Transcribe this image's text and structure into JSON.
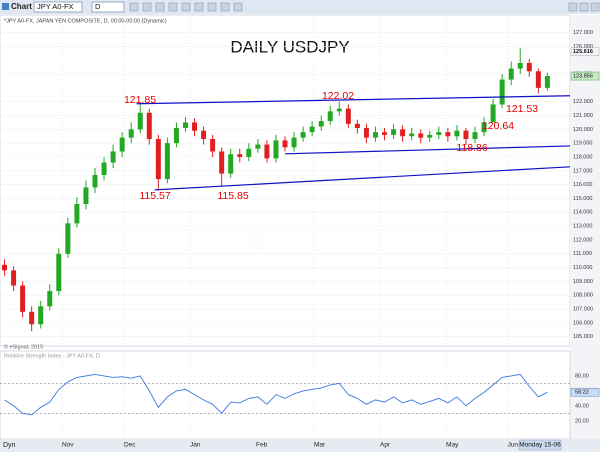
{
  "toolbar": {
    "title": "Chart",
    "symbol": "JPY A0-FX",
    "interval": "D"
  },
  "footer": {
    "mode": "Dyn",
    "cursor_date": "Monday 15-06"
  },
  "chart_data": [
    {
      "type": "candlestick",
      "title": "DAILY USDJPY",
      "subtitle": "*JPY A0-FX, JAPAN YEN COMPOSITE, D, 00:00-00:00 (Dynamic)",
      "copyright": "© eSignal, 2015",
      "up_color": "#22a822",
      "down_color": "#e02020",
      "x": [
        0,
        1,
        2,
        3,
        4,
        5,
        6,
        7,
        8,
        9,
        10,
        11,
        12,
        13,
        14,
        15,
        16,
        17,
        18,
        19,
        20,
        21,
        22,
        23,
        24,
        25,
        26,
        27,
        28,
        29,
        30,
        31,
        32,
        33,
        34,
        35,
        36,
        37,
        38,
        39,
        40,
        41,
        42,
        43,
        44,
        45,
        46,
        47,
        48,
        49,
        50,
        51,
        52,
        53,
        54,
        55,
        56,
        57,
        58,
        59,
        60
      ],
      "open": [
        110.2,
        109.8,
        108.7,
        106.8,
        105.9,
        107.2,
        108.3,
        111.0,
        113.2,
        114.6,
        115.8,
        116.7,
        117.6,
        118.4,
        119.4,
        120.0,
        121.2,
        119.3,
        116.4,
        119.0,
        120.1,
        120.5,
        119.9,
        119.3,
        118.4,
        116.8,
        118.2,
        118.0,
        118.6,
        118.9,
        117.9,
        119.2,
        118.7,
        119.4,
        119.8,
        120.2,
        120.6,
        121.3,
        121.5,
        120.4,
        120.1,
        119.4,
        119.8,
        119.6,
        120.0,
        119.5,
        119.7,
        119.4,
        119.6,
        119.8,
        119.5,
        119.9,
        119.3,
        119.8,
        120.5,
        121.8,
        123.6,
        124.4,
        124.8,
        124.2,
        123.0
      ],
      "high": [
        110.6,
        110.1,
        109.0,
        107.2,
        107.6,
        108.8,
        111.4,
        113.6,
        115.1,
        116.3,
        117.2,
        118.0,
        118.9,
        119.8,
        120.5,
        121.85,
        121.5,
        119.6,
        119.4,
        120.5,
        120.9,
        120.8,
        120.2,
        119.6,
        118.7,
        118.6,
        118.6,
        119.0,
        119.3,
        119.2,
        119.6,
        119.5,
        119.8,
        120.2,
        120.6,
        121.0,
        121.7,
        122.02,
        121.8,
        120.7,
        120.4,
        120.2,
        120.1,
        120.4,
        120.3,
        120.1,
        120.0,
        119.9,
        120.2,
        120.1,
        120.3,
        120.1,
        120.2,
        120.9,
        122.2,
        124.0,
        124.9,
        125.86,
        125.1,
        124.4,
        124.1
      ],
      "low": [
        109.4,
        108.3,
        106.4,
        105.4,
        105.6,
        106.9,
        108.0,
        110.7,
        112.9,
        114.2,
        115.4,
        116.3,
        117.2,
        118.0,
        119.0,
        119.7,
        118.9,
        115.57,
        116.1,
        118.7,
        119.8,
        119.5,
        118.9,
        118.0,
        115.85,
        116.5,
        117.6,
        117.7,
        118.3,
        117.6,
        117.6,
        118.4,
        118.4,
        119.1,
        119.5,
        119.9,
        120.3,
        121.0,
        120.1,
        119.7,
        119.0,
        119.1,
        119.2,
        119.3,
        119.1,
        119.2,
        119.0,
        119.1,
        119.3,
        119.1,
        119.2,
        118.86,
        119.0,
        119.5,
        120.64,
        121.53,
        123.2,
        124.0,
        123.8,
        122.6,
        122.8
      ],
      "close": [
        109.8,
        108.7,
        106.8,
        105.9,
        107.2,
        108.3,
        111.0,
        113.2,
        114.6,
        115.8,
        116.7,
        117.6,
        118.4,
        119.4,
        120.0,
        121.2,
        119.3,
        116.4,
        119.0,
        120.1,
        120.5,
        119.9,
        119.3,
        118.4,
        116.8,
        118.2,
        118.0,
        118.6,
        118.9,
        117.9,
        119.2,
        118.7,
        119.4,
        119.8,
        120.2,
        120.6,
        121.3,
        121.5,
        120.4,
        120.1,
        119.4,
        119.8,
        119.6,
        120.0,
        119.5,
        119.7,
        119.4,
        119.6,
        119.8,
        119.5,
        119.9,
        119.3,
        119.8,
        120.5,
        121.8,
        123.6,
        124.4,
        124.8,
        124.2,
        123.0,
        123.856
      ],
      "price_marker": 125.616,
      "annotations": [
        "121.85",
        "115.57",
        "115.85",
        "122.02",
        "121.53",
        "120.64",
        "118.86"
      ],
      "annotation_color": "#e00000",
      "trendlines": [
        {
          "x": [
            14.6,
            62.5
          ],
          "y": [
            121.85,
            122.43
          ]
        },
        {
          "x": [
            31,
            62.5
          ],
          "y": [
            118.23,
            118.8
          ]
        },
        {
          "x": [
            16.6,
            62.5
          ],
          "y": [
            115.62,
            117.29
          ]
        }
      ],
      "trendline_color": "#1010c8",
      "xlim": [
        -0.5,
        62.5
      ],
      "ylim": [
        104.4,
        128.2
      ],
      "yticks": [
        {
          "value": 105,
          "label": "105.000"
        },
        {
          "value": 106,
          "label": "106.000"
        },
        {
          "value": 107,
          "label": "107.000"
        },
        {
          "value": 108,
          "label": "108.000"
        },
        {
          "value": 109,
          "label": "109.000"
        },
        {
          "value": 110,
          "label": "110.000"
        },
        {
          "value": 111,
          "label": "111.000"
        },
        {
          "value": 112,
          "label": "112.000"
        },
        {
          "value": 113,
          "label": "113.000"
        },
        {
          "value": 114,
          "label": "114.000"
        },
        {
          "value": 115,
          "label": "115.000"
        },
        {
          "value": 116,
          "label": "116.000"
        },
        {
          "value": 117,
          "label": "117.000"
        },
        {
          "value": 118,
          "label": "118.000"
        },
        {
          "value": 119,
          "label": "119.000"
        },
        {
          "value": 120,
          "label": "120.000"
        },
        {
          "value": 121,
          "label": "121.000"
        },
        {
          "value": 122,
          "label": "122.000"
        },
        {
          "value": 124,
          "label": "124.000"
        },
        {
          "value": 126,
          "label": "126.000"
        },
        {
          "value": 127,
          "label": "127.000"
        }
      ],
      "grid": true
    },
    {
      "type": "line",
      "title": "Relative Strength Index - JPY A0-FX, D",
      "color": "#3b78e0",
      "x": [
        0,
        1,
        2,
        3,
        4,
        5,
        6,
        7,
        8,
        9,
        10,
        11,
        12,
        13,
        14,
        15,
        16,
        17,
        18,
        19,
        20,
        21,
        22,
        23,
        24,
        25,
        26,
        27,
        28,
        29,
        30,
        31,
        32,
        33,
        34,
        35,
        36,
        37,
        38,
        39,
        40,
        41,
        42,
        43,
        44,
        45,
        46,
        47,
        48,
        49,
        50,
        51,
        52,
        53,
        54,
        55,
        56,
        57,
        58,
        59,
        60
      ],
      "values": [
        48,
        40,
        30,
        28,
        38,
        45,
        62,
        72,
        78,
        80,
        82,
        80,
        78,
        79,
        77,
        80,
        60,
        38,
        52,
        60,
        62,
        55,
        48,
        42,
        30,
        45,
        44,
        50,
        52,
        42,
        55,
        50,
        56,
        60,
        62,
        64,
        68,
        70,
        55,
        50,
        42,
        48,
        45,
        52,
        44,
        48,
        42,
        46,
        50,
        44,
        52,
        40,
        50,
        58,
        68,
        78,
        80,
        82,
        66,
        52,
        58.22
      ],
      "levels": [
        70,
        30
      ],
      "xlim": [
        -0.5,
        62.5
      ],
      "ylim": [
        -3,
        112
      ],
      "yticks": [
        {
          "value": 80,
          "label": "80.00"
        },
        {
          "value": 60,
          "label": "60.00"
        },
        {
          "value": 40,
          "label": "40.00"
        },
        {
          "value": 20,
          "label": "20.00"
        }
      ],
      "xticks": [
        {
          "value": 6.35,
          "label": "Nov"
        },
        {
          "value": 13.2,
          "label": "Dec"
        },
        {
          "value": 20.5,
          "label": "Jan"
        },
        {
          "value": 27.8,
          "label": "Feb"
        },
        {
          "value": 34.2,
          "label": "Mar"
        },
        {
          "value": 41.5,
          "label": "Apr"
        },
        {
          "value": 48.8,
          "label": "May"
        },
        {
          "value": 55.6,
          "label": "Jun"
        }
      ],
      "grid": true
    }
  ]
}
